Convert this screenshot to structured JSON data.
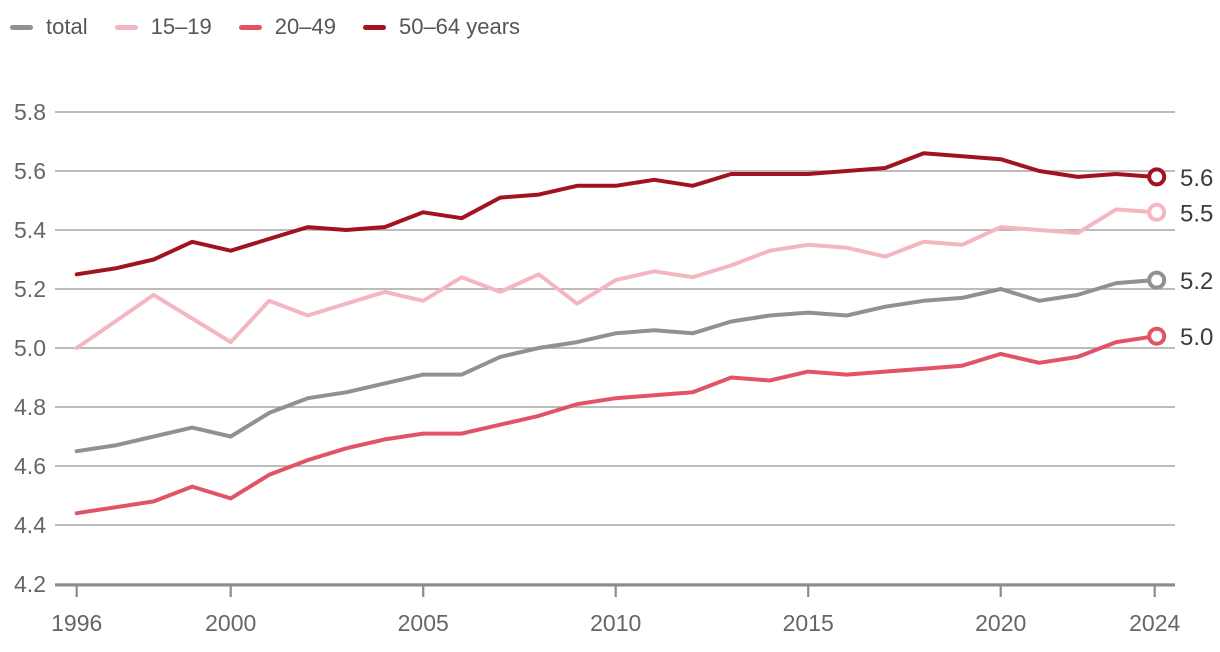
{
  "style": {
    "grid_color": "#a6a6a6",
    "axis_color": "#8c8c8c",
    "tick_label_color": "#666666",
    "end_label_color": "#3c3c3c",
    "legend_text_color": "#565656",
    "background": "#ffffff"
  },
  "chart_data": {
    "type": "line",
    "title": "",
    "xlabel": "",
    "ylabel": "",
    "xlim": [
      1996,
      2024
    ],
    "ylim": [
      4.2,
      5.8
    ],
    "grid": true,
    "legend_position": "top-left",
    "x": [
      1996,
      1997,
      1998,
      1999,
      2000,
      2001,
      2002,
      2003,
      2004,
      2005,
      2006,
      2007,
      2008,
      2009,
      2010,
      2011,
      2012,
      2013,
      2014,
      2015,
      2016,
      2017,
      2018,
      2019,
      2020,
      2021,
      2022,
      2023,
      2024
    ],
    "x_ticks": [
      1996,
      2000,
      2005,
      2010,
      2015,
      2020,
      2024
    ],
    "y_ticks": [
      5.8,
      5.6,
      5.4,
      5.2,
      5.0,
      4.8,
      4.6,
      4.4,
      4.2
    ],
    "series": [
      {
        "name": "total",
        "color": "#919191",
        "end_label": "5.2",
        "values": [
          4.65,
          4.67,
          4.7,
          4.73,
          4.7,
          4.78,
          4.83,
          4.85,
          4.88,
          4.91,
          4.91,
          4.97,
          5.0,
          5.02,
          5.05,
          5.06,
          5.05,
          5.09,
          5.11,
          5.12,
          5.11,
          5.14,
          5.16,
          5.17,
          5.2,
          5.16,
          5.18,
          5.22,
          5.23
        ]
      },
      {
        "name": "15–19",
        "color": "#f4b6c0",
        "end_label": "5.5",
        "values": [
          5.0,
          5.09,
          5.18,
          5.1,
          5.02,
          5.16,
          5.11,
          5.15,
          5.19,
          5.16,
          5.24,
          5.19,
          5.25,
          5.15,
          5.23,
          5.26,
          5.24,
          5.28,
          5.33,
          5.35,
          5.34,
          5.31,
          5.36,
          5.35,
          5.41,
          5.4,
          5.39,
          5.47,
          5.46
        ]
      },
      {
        "name": "20–49",
        "color": "#e25368",
        "end_label": "5.0",
        "values": [
          4.44,
          4.46,
          4.48,
          4.53,
          4.49,
          4.57,
          4.62,
          4.66,
          4.69,
          4.71,
          4.71,
          4.74,
          4.77,
          4.81,
          4.83,
          4.84,
          4.85,
          4.9,
          4.89,
          4.92,
          4.91,
          4.92,
          4.93,
          4.94,
          4.98,
          4.95,
          4.97,
          5.02,
          5.04
        ]
      },
      {
        "name": "50–64 years",
        "color": "#a21322",
        "end_label": "5.6",
        "values": [
          5.25,
          5.27,
          5.3,
          5.36,
          5.33,
          5.37,
          5.41,
          5.4,
          5.41,
          5.46,
          5.44,
          5.51,
          5.52,
          5.55,
          5.55,
          5.57,
          5.55,
          5.59,
          5.59,
          5.59,
          5.6,
          5.61,
          5.66,
          5.65,
          5.64,
          5.6,
          5.58,
          5.59,
          5.58
        ]
      }
    ]
  }
}
